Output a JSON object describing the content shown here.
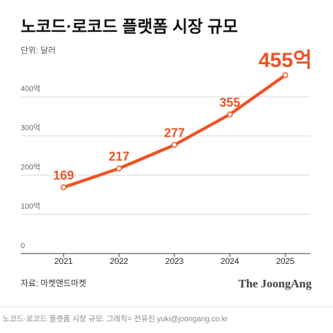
{
  "chart_data": {
    "type": "line",
    "title": "노코드·로코드 플랫폼 시장 규모",
    "subtitle": "단위: 달러",
    "source": "자료: 마켓앤드마켓",
    "brand": "The JoongAng",
    "caption": "노코드·로코드 플랫폼 시장 규모. 그래픽= 전유진 yuki@joongang.co.kr",
    "categories": [
      "2021",
      "2022",
      "2023",
      "2024",
      "2025"
    ],
    "values": [
      169,
      217,
      277,
      355,
      455
    ],
    "value_labels": [
      "169",
      "217",
      "277",
      "355",
      "455억"
    ],
    "color": "#ee5324",
    "ylim": [
      0,
      460
    ],
    "yticks": [
      0,
      {
        "value": 100,
        "label": "100억"
      },
      {
        "value": 200,
        "label": "200억"
      },
      {
        "value": 300,
        "label": "300억"
      },
      {
        "value": 400,
        "label": "400억"
      }
    ],
    "grid": true
  }
}
